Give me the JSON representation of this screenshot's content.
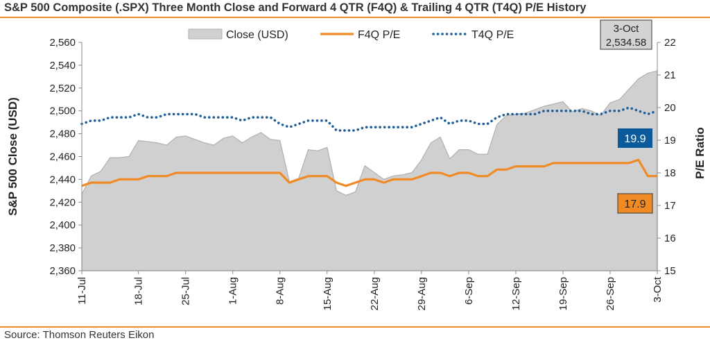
{
  "title": "S&P 500 Composite (.SPX) Three Month Close and Forward 4 QTR (F4Q) & Trailing 4 QTR (T4Q) P/E History",
  "source": "Source: Thomson Reuters Eikon",
  "colors": {
    "accent": "#f08a24",
    "area_fill": "#d0d0d0",
    "area_stroke": "#b0b0b0",
    "f4q": "#f08a24",
    "t4q": "#1f5f99",
    "f4q_badge": "#f08a24",
    "t4q_badge": "#0b5a9c"
  },
  "chart_data": {
    "type": "area",
    "y_left": {
      "label": "S&P 500 Close (USD)",
      "min": 2360,
      "max": 2560,
      "ticks": [
        "2,360",
        "2,380",
        "2,400",
        "2,420",
        "2,440",
        "2,460",
        "2,480",
        "2,500",
        "2,520",
        "2,540",
        "2,560"
      ]
    },
    "y_right": {
      "label": "P/E Ratio",
      "min": 15,
      "max": 22,
      "ticks": [
        "15",
        "16",
        "17",
        "18",
        "19",
        "20",
        "21",
        "22"
      ]
    },
    "x_tick_labels": [
      "11-Jul",
      "18-Jul",
      "25-Jul",
      "1-Aug",
      "8-Aug",
      "15-Aug",
      "22-Aug",
      "29-Aug",
      "6-Sep",
      "12-Sep",
      "19-Sep",
      "26-Sep",
      "3-Oct"
    ],
    "x_tick_index": [
      0,
      6,
      11,
      16,
      21,
      26,
      31,
      36,
      41,
      46,
      51,
      56,
      61
    ],
    "legend": [
      "Close (USD)",
      "F4Q P/E",
      "T4Q P/E"
    ],
    "series": [
      {
        "name": "Close (USD)",
        "axis": "left",
        "values": [
          2427,
          2443,
          2447,
          2459,
          2459,
          2460,
          2474,
          2473,
          2472,
          2470,
          2477,
          2478,
          2475,
          2472,
          2470,
          2476,
          2478,
          2472,
          2477,
          2481,
          2475,
          2474,
          2438,
          2441,
          2466,
          2465,
          2468,
          2430,
          2426,
          2429,
          2452,
          2446,
          2440,
          2443,
          2444,
          2446,
          2457,
          2472,
          2477,
          2458,
          2466,
          2466,
          2462,
          2462,
          2488,
          2496,
          2497,
          2498,
          2501,
          2504,
          2506,
          2508,
          2499,
          2502,
          2500,
          2496,
          2507,
          2510,
          2519,
          2528,
          2533,
          2535
        ]
      },
      {
        "name": "F4Q P/E",
        "axis": "right",
        "values": [
          17.6,
          17.7,
          17.7,
          17.7,
          17.8,
          17.8,
          17.8,
          17.9,
          17.9,
          17.9,
          18.0,
          18.0,
          18.0,
          18.0,
          18.0,
          18.0,
          18.0,
          18.0,
          18.0,
          18.0,
          18.0,
          18.0,
          17.7,
          17.8,
          17.9,
          17.9,
          17.9,
          17.7,
          17.6,
          17.7,
          17.8,
          17.8,
          17.7,
          17.8,
          17.8,
          17.8,
          17.9,
          18.0,
          18.0,
          17.9,
          18.0,
          18.0,
          17.9,
          17.9,
          18.1,
          18.1,
          18.2,
          18.2,
          18.2,
          18.2,
          18.3,
          18.3,
          18.3,
          18.3,
          18.3,
          18.3,
          18.3,
          18.3,
          18.3,
          18.4,
          17.9,
          17.9
        ]
      },
      {
        "name": "T4Q P/E",
        "axis": "right",
        "values": [
          19.5,
          19.6,
          19.6,
          19.7,
          19.7,
          19.7,
          19.8,
          19.7,
          19.7,
          19.8,
          19.8,
          19.8,
          19.8,
          19.7,
          19.7,
          19.7,
          19.7,
          19.6,
          19.7,
          19.7,
          19.7,
          19.5,
          19.4,
          19.5,
          19.6,
          19.6,
          19.6,
          19.3,
          19.3,
          19.3,
          19.4,
          19.4,
          19.4,
          19.4,
          19.4,
          19.4,
          19.5,
          19.6,
          19.7,
          19.5,
          19.6,
          19.6,
          19.5,
          19.5,
          19.7,
          19.8,
          19.8,
          19.8,
          19.8,
          19.9,
          19.9,
          19.9,
          19.9,
          19.9,
          19.8,
          19.8,
          19.9,
          19.9,
          20.0,
          19.9,
          19.8,
          19.9
        ]
      }
    ],
    "annotations": {
      "last_date": "3-Oct",
      "last_close": "2,534.58",
      "t4q_last": "19.9",
      "f4q_last": "17.9"
    },
    "grid": false,
    "legend_position": "top"
  }
}
